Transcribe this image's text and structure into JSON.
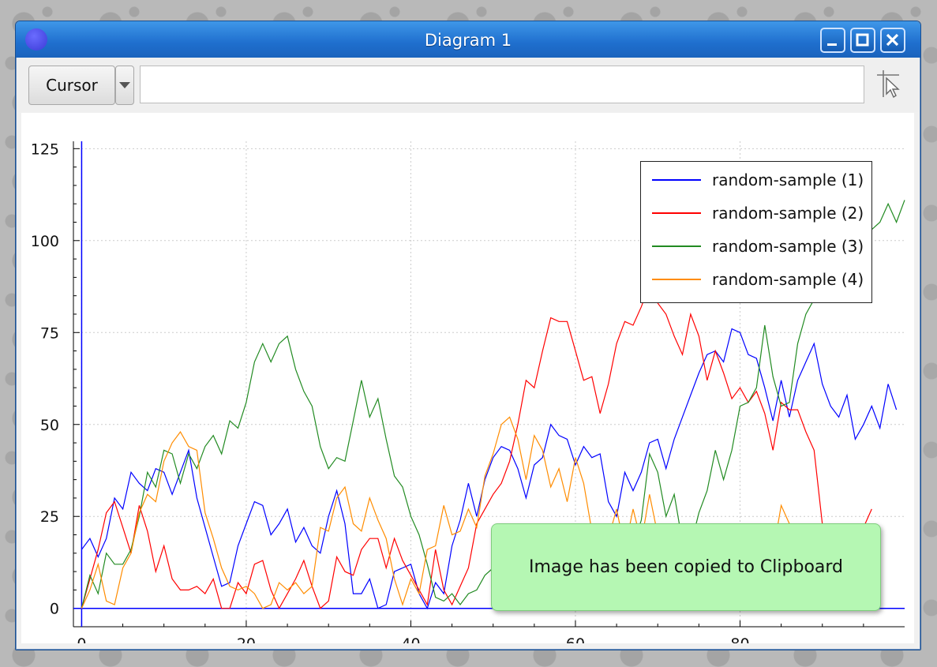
{
  "window": {
    "title": "Diagram 1",
    "icon": "app-circle-icon"
  },
  "toolbar": {
    "cursor_label": "Cursor",
    "coord_value": "",
    "pointer_icon": "crosshair-pointer-icon"
  },
  "toast": {
    "message": "Image has been copied to Clipboard"
  },
  "chart_data": {
    "type": "line",
    "title": "",
    "xlabel": "",
    "ylabel": "",
    "xlim": [
      -1,
      100
    ],
    "ylim": [
      -5,
      127
    ],
    "xticks": [
      0,
      20,
      40,
      60,
      80
    ],
    "yticks": [
      0,
      25,
      50,
      75,
      100,
      125
    ],
    "grid": true,
    "legend_position": "top-right",
    "series": [
      {
        "name": "random-sample (1)",
        "color": "#0000ff",
        "values": [
          16,
          19,
          14,
          19,
          30,
          27,
          37,
          34,
          32,
          38,
          37,
          31,
          37,
          43,
          30,
          22,
          14,
          6,
          7,
          17,
          23,
          29,
          28,
          20,
          23,
          27,
          18,
          22,
          17,
          15,
          25,
          32,
          23,
          4,
          4,
          8,
          0,
          1,
          10,
          11,
          12,
          4,
          0,
          7,
          4,
          17,
          24,
          34,
          25,
          35,
          41,
          44,
          43,
          38,
          30,
          39,
          41,
          50,
          47,
          46,
          39,
          44,
          41,
          42,
          29,
          25,
          37,
          32,
          37,
          45,
          46,
          38,
          46,
          52,
          58,
          64,
          69,
          70,
          67,
          76,
          75,
          69,
          68,
          60,
          51,
          62,
          52,
          62,
          67,
          72,
          61,
          55,
          52,
          58,
          46,
          50,
          55,
          49,
          61,
          54
        ]
      },
      {
        "name": "random-sample (2)",
        "color": "#ff0000",
        "values": [
          0,
          8,
          16,
          26,
          29,
          22,
          15,
          28,
          21,
          10,
          17,
          8,
          5,
          5,
          6,
          4,
          8,
          0,
          0,
          7,
          4,
          12,
          13,
          5,
          0,
          4,
          8,
          13,
          6,
          0,
          2,
          14,
          10,
          9,
          16,
          19,
          19,
          11,
          19,
          13,
          9,
          5,
          1,
          16,
          5,
          1,
          6,
          11,
          23,
          27,
          31,
          34,
          40,
          50,
          62,
          60,
          70,
          79,
          78,
          78,
          70,
          62,
          63,
          53,
          61,
          72,
          78,
          77,
          82,
          88,
          83,
          80,
          74,
          69,
          80,
          74,
          62,
          70,
          64,
          57,
          60,
          56,
          59,
          53,
          43,
          56,
          54,
          54,
          48,
          43,
          23,
          15,
          23,
          12,
          17,
          22,
          27
        ]
      },
      {
        "name": "random-sample (3)",
        "color": "#228b22",
        "values": [
          0,
          9,
          4,
          15,
          12,
          12,
          16,
          25,
          37,
          33,
          43,
          42,
          34,
          42,
          38,
          44,
          47,
          42,
          51,
          49,
          56,
          67,
          72,
          67,
          72,
          74,
          65,
          59,
          55,
          44,
          38,
          41,
          40,
          51,
          62,
          52,
          57,
          46,
          36,
          33,
          25,
          20,
          12,
          3,
          2,
          4,
          1,
          4,
          5,
          9,
          11,
          17,
          21,
          14,
          19,
          14,
          15,
          20,
          16,
          13,
          10,
          8,
          6,
          4,
          7,
          16,
          19,
          17,
          24,
          42,
          37,
          25,
          31,
          18,
          17,
          26,
          32,
          43,
          35,
          43,
          55,
          56,
          60,
          77,
          63,
          55,
          56,
          72,
          80,
          84,
          99,
          101,
          104,
          110,
          105,
          111,
          103,
          105,
          110,
          105,
          111
        ]
      },
      {
        "name": "random-sample (4)",
        "color": "#ff8c00",
        "values": [
          0,
          5,
          12,
          2,
          1,
          11,
          15,
          26,
          31,
          29,
          40,
          45,
          48,
          44,
          43,
          26,
          19,
          11,
          6,
          5,
          6,
          4,
          0,
          1,
          7,
          5,
          7,
          4,
          6,
          22,
          21,
          30,
          33,
          23,
          21,
          30,
          24,
          19,
          8,
          1,
          8,
          4,
          16,
          17,
          28,
          20,
          21,
          27,
          22,
          36,
          42,
          50,
          52,
          46,
          35,
          47,
          43,
          33,
          38,
          29,
          41,
          34,
          21,
          20,
          19,
          27,
          16,
          27,
          18,
          31,
          20,
          19,
          17,
          14,
          12,
          15,
          20,
          18,
          17,
          16,
          19,
          18,
          16,
          18,
          15,
          28,
          23,
          19,
          14,
          9,
          11,
          13,
          18,
          16,
          14,
          11,
          15
        ]
      }
    ]
  }
}
